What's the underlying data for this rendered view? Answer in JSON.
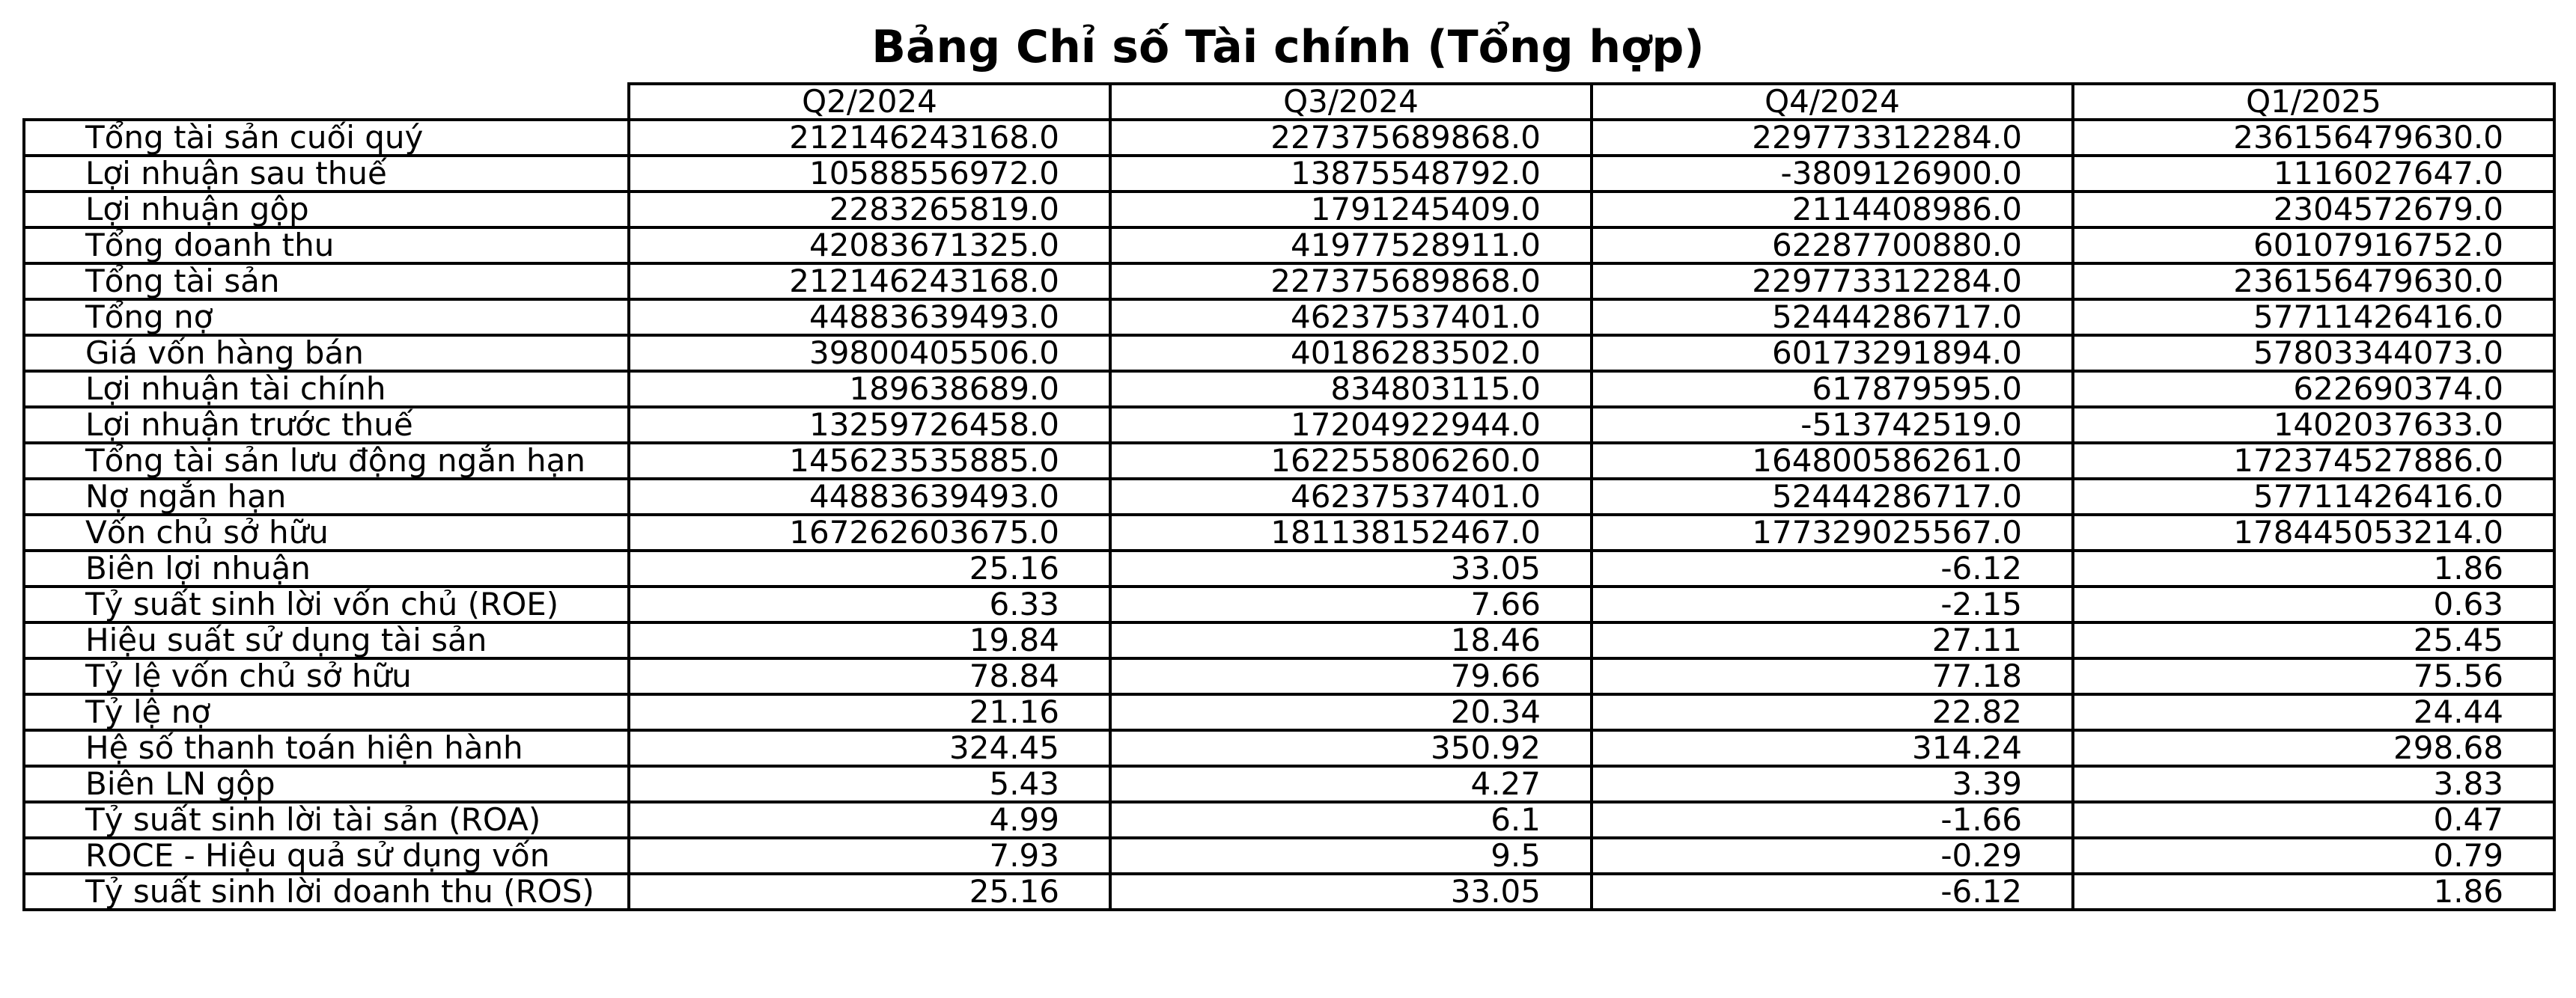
{
  "chart_data": {
    "type": "table",
    "title": "Bảng Chỉ số Tài chính (Tổng hợp)",
    "columns": [
      "Q2/2024",
      "Q3/2024",
      "Q4/2024",
      "Q1/2025"
    ],
    "rows": [
      {
        "label": "Tổng tài sản cuối quý",
        "values": [
          "212146243168.0",
          "227375689868.0",
          "229773312284.0",
          "236156479630.0"
        ]
      },
      {
        "label": "Lợi nhuận sau thuế",
        "values": [
          "10588556972.0",
          "13875548792.0",
          "-3809126900.0",
          "1116027647.0"
        ]
      },
      {
        "label": "Lợi nhuận gộp",
        "values": [
          "2283265819.0",
          "1791245409.0",
          "2114408986.0",
          "2304572679.0"
        ]
      },
      {
        "label": "Tổng doanh thu",
        "values": [
          "42083671325.0",
          "41977528911.0",
          "62287700880.0",
          "60107916752.0"
        ]
      },
      {
        "label": "Tổng tài sản",
        "values": [
          "212146243168.0",
          "227375689868.0",
          "229773312284.0",
          "236156479630.0"
        ]
      },
      {
        "label": "Tổng nợ",
        "values": [
          "44883639493.0",
          "46237537401.0",
          "52444286717.0",
          "57711426416.0"
        ]
      },
      {
        "label": "Giá vốn hàng bán",
        "values": [
          "39800405506.0",
          "40186283502.0",
          "60173291894.0",
          "57803344073.0"
        ]
      },
      {
        "label": "Lợi nhuận tài chính",
        "values": [
          "189638689.0",
          "834803115.0",
          "617879595.0",
          "622690374.0"
        ]
      },
      {
        "label": "Lợi nhuận trước thuế",
        "values": [
          "13259726458.0",
          "17204922944.0",
          "-513742519.0",
          "1402037633.0"
        ]
      },
      {
        "label": "Tổng tài sản lưu động ngắn hạn",
        "values": [
          "145623535885.0",
          "162255806260.0",
          "164800586261.0",
          "172374527886.0"
        ]
      },
      {
        "label": "Nợ ngắn hạn",
        "values": [
          "44883639493.0",
          "46237537401.0",
          "52444286717.0",
          "57711426416.0"
        ]
      },
      {
        "label": "Vốn chủ sở hữu",
        "values": [
          "167262603675.0",
          "181138152467.0",
          "177329025567.0",
          "178445053214.0"
        ]
      },
      {
        "label": "Biên lợi nhuận",
        "values": [
          "25.16",
          "33.05",
          "-6.12",
          "1.86"
        ]
      },
      {
        "label": "Tỷ suất sinh lời vốn chủ (ROE)",
        "values": [
          "6.33",
          "7.66",
          "-2.15",
          "0.63"
        ]
      },
      {
        "label": "Hiệu suất sử dụng tài sản",
        "values": [
          "19.84",
          "18.46",
          "27.11",
          "25.45"
        ]
      },
      {
        "label": "Tỷ lệ vốn chủ sở hữu",
        "values": [
          "78.84",
          "79.66",
          "77.18",
          "75.56"
        ]
      },
      {
        "label": "Tỷ lệ nợ",
        "values": [
          "21.16",
          "20.34",
          "22.82",
          "24.44"
        ]
      },
      {
        "label": "Hệ số thanh toán hiện hành",
        "values": [
          "324.45",
          "350.92",
          "314.24",
          "298.68"
        ]
      },
      {
        "label": "Biên LN gộp",
        "values": [
          "5.43",
          "4.27",
          "3.39",
          "3.83"
        ]
      },
      {
        "label": "Tỷ suất sinh lời tài sản (ROA)",
        "values": [
          "4.99",
          "6.1",
          "-1.66",
          "0.47"
        ]
      },
      {
        "label": "ROCE - Hiệu quả sử dụng vốn",
        "values": [
          "7.93",
          "9.5",
          "-0.29",
          "0.79"
        ]
      },
      {
        "label": "Tỷ suất sinh lời doanh thu (ROS)",
        "values": [
          "25.16",
          "33.05",
          "-6.12",
          "1.86"
        ]
      }
    ]
  },
  "colors": {
    "background": "#ffffff",
    "text": "#000000",
    "border": "#000000"
  }
}
